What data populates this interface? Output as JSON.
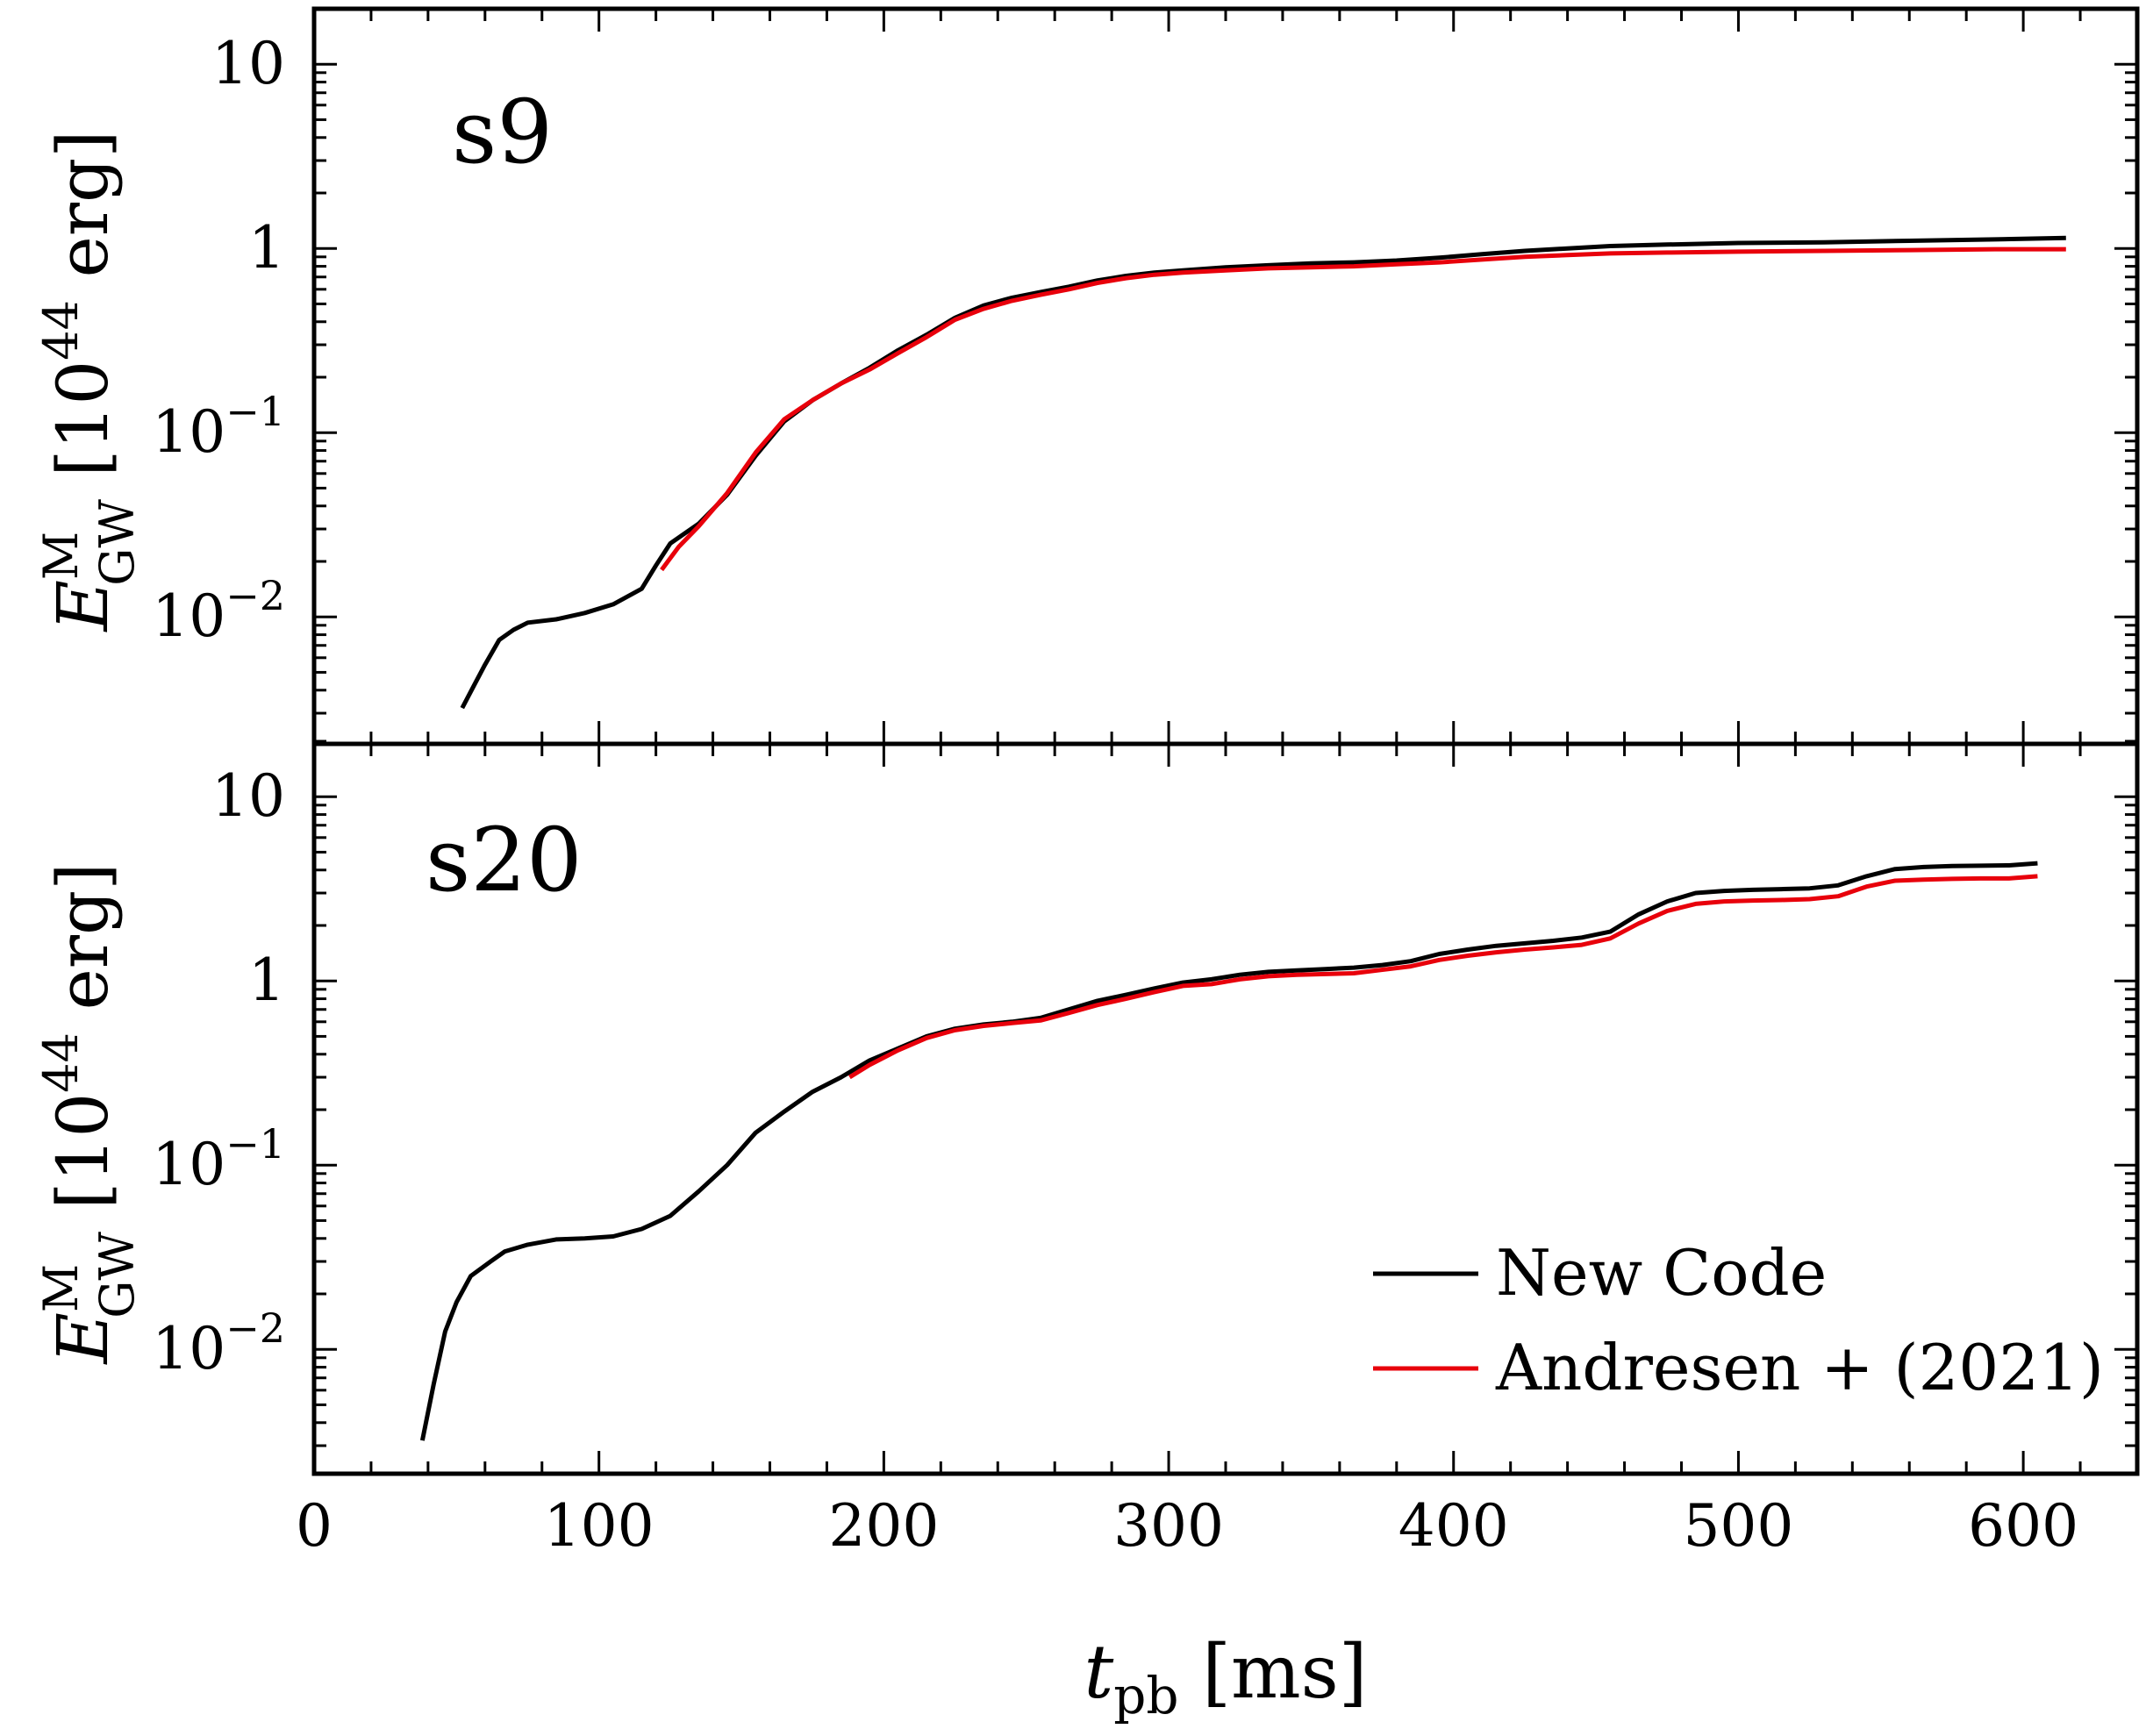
{
  "chart_data": [
    {
      "type": "line",
      "panel_label": "s9",
      "yscale": "log",
      "xlim": [
        0,
        640
      ],
      "ylim": [
        0.003,
        20
      ],
      "xticks": [
        "0",
        "100",
        "200",
        "300",
        "400",
        "500",
        "600"
      ],
      "yticks": [
        {
          "base": "10",
          "exp": "−2",
          "value": 0.01
        },
        {
          "base": "10",
          "exp": "−1",
          "value": 0.1
        },
        {
          "base": "1",
          "exp": "",
          "value": 1
        },
        {
          "base": "10",
          "exp": "",
          "value": 10
        }
      ],
      "ylabel": {
        "sym": "E",
        "sup": "M",
        "sub": "GW",
        "unit_open": " [10",
        "unit_exp": "44",
        "unit_close": " erg]"
      },
      "series": [
        {
          "name": "New Code",
          "color": "#000000",
          "points": [
            [
              52,
              0.0032
            ],
            [
              56,
              0.0042
            ],
            [
              60,
              0.0055
            ],
            [
              65,
              0.0075
            ],
            [
              70,
              0.0085
            ],
            [
              75,
              0.0093
            ],
            [
              85,
              0.0097
            ],
            [
              95,
              0.0105
            ],
            [
              105,
              0.0117
            ],
            [
              115,
              0.0142
            ],
            [
              120,
              0.019
            ],
            [
              125,
              0.025
            ],
            [
              135,
              0.032
            ],
            [
              145,
              0.046
            ],
            [
              155,
              0.075
            ],
            [
              165,
              0.115
            ],
            [
              175,
              0.15
            ],
            [
              185,
              0.185
            ],
            [
              195,
              0.225
            ],
            [
              205,
              0.28
            ],
            [
              215,
              0.34
            ],
            [
              225,
              0.42
            ],
            [
              235,
              0.49
            ],
            [
              245,
              0.54
            ],
            [
              255,
              0.58
            ],
            [
              265,
              0.62
            ],
            [
              275,
              0.67
            ],
            [
              285,
              0.71
            ],
            [
              295,
              0.74
            ],
            [
              305,
              0.76
            ],
            [
              320,
              0.79
            ],
            [
              335,
              0.81
            ],
            [
              350,
              0.83
            ],
            [
              365,
              0.84
            ],
            [
              380,
              0.86
            ],
            [
              395,
              0.89
            ],
            [
              410,
              0.93
            ],
            [
              425,
              0.97
            ],
            [
              440,
              1.0
            ],
            [
              455,
              1.03
            ],
            [
              475,
              1.05
            ],
            [
              500,
              1.07
            ],
            [
              530,
              1.08
            ],
            [
              560,
              1.1
            ],
            [
              590,
              1.12
            ],
            [
              615,
              1.14
            ]
          ]
        },
        {
          "name": "Andresen + (2021)",
          "color": "#e8000b",
          "points": [
            [
              122,
              0.018
            ],
            [
              128,
              0.024
            ],
            [
              135,
              0.031
            ],
            [
              145,
              0.047
            ],
            [
              155,
              0.078
            ],
            [
              165,
              0.118
            ],
            [
              175,
              0.15
            ],
            [
              185,
              0.185
            ],
            [
              195,
              0.22
            ],
            [
              205,
              0.27
            ],
            [
              215,
              0.33
            ],
            [
              225,
              0.41
            ],
            [
              235,
              0.47
            ],
            [
              245,
              0.52
            ],
            [
              255,
              0.56
            ],
            [
              265,
              0.6
            ],
            [
              275,
              0.65
            ],
            [
              285,
              0.69
            ],
            [
              295,
              0.72
            ],
            [
              305,
              0.74
            ],
            [
              320,
              0.76
            ],
            [
              335,
              0.78
            ],
            [
              350,
              0.79
            ],
            [
              365,
              0.8
            ],
            [
              380,
              0.82
            ],
            [
              395,
              0.84
            ],
            [
              410,
              0.87
            ],
            [
              425,
              0.9
            ],
            [
              440,
              0.92
            ],
            [
              455,
              0.94
            ],
            [
              475,
              0.95
            ],
            [
              500,
              0.96
            ],
            [
              530,
              0.97
            ],
            [
              560,
              0.98
            ],
            [
              590,
              0.99
            ],
            [
              615,
              0.99
            ]
          ]
        }
      ]
    },
    {
      "type": "line",
      "panel_label": "s20",
      "yscale": "log",
      "xlim": [
        0,
        640
      ],
      "ylim": [
        0.003,
        20
      ],
      "xticks": [
        "0",
        "100",
        "200",
        "300",
        "400",
        "500",
        "600"
      ],
      "yticks": [
        {
          "base": "10",
          "exp": "−2",
          "value": 0.01
        },
        {
          "base": "10",
          "exp": "−1",
          "value": 0.1
        },
        {
          "base": "1",
          "exp": "",
          "value": 1
        },
        {
          "base": "10",
          "exp": "",
          "value": 10
        }
      ],
      "ylabel": {
        "sym": "E",
        "sup": "M",
        "sub": "GW",
        "unit_open": " [10",
        "unit_exp": "44",
        "unit_close": " erg]"
      },
      "xlabel": {
        "sym": "t",
        "sub": "pb",
        "unit": " [ms]"
      },
      "legend": {
        "placement": "bottom-right"
      },
      "series": [
        {
          "name": "New Code",
          "color": "#000000",
          "points": [
            [
              38,
              0.0032
            ],
            [
              42,
              0.0065
            ],
            [
              46,
              0.0125
            ],
            [
              50,
              0.018
            ],
            [
              55,
              0.025
            ],
            [
              62,
              0.03
            ],
            [
              67,
              0.034
            ],
            [
              75,
              0.037
            ],
            [
              85,
              0.0395
            ],
            [
              95,
              0.04
            ],
            [
              105,
              0.041
            ],
            [
              115,
              0.045
            ],
            [
              125,
              0.053
            ],
            [
              135,
              0.072
            ],
            [
              145,
              0.1
            ],
            [
              155,
              0.15
            ],
            [
              165,
              0.195
            ],
            [
              175,
              0.25
            ],
            [
              185,
              0.3
            ],
            [
              195,
              0.37
            ],
            [
              205,
              0.43
            ],
            [
              215,
              0.5
            ],
            [
              225,
              0.55
            ],
            [
              235,
              0.58
            ],
            [
              245,
              0.6
            ],
            [
              255,
              0.63
            ],
            [
              265,
              0.7
            ],
            [
              275,
              0.78
            ],
            [
              285,
              0.84
            ],
            [
              295,
              0.91
            ],
            [
              305,
              0.98
            ],
            [
              315,
              1.02
            ],
            [
              325,
              1.08
            ],
            [
              335,
              1.12
            ],
            [
              345,
              1.14
            ],
            [
              355,
              1.16
            ],
            [
              365,
              1.18
            ],
            [
              375,
              1.22
            ],
            [
              385,
              1.28
            ],
            [
              395,
              1.4
            ],
            [
              405,
              1.48
            ],
            [
              415,
              1.55
            ],
            [
              425,
              1.6
            ],
            [
              435,
              1.65
            ],
            [
              445,
              1.72
            ],
            [
              455,
              1.85
            ],
            [
              465,
              2.3
            ],
            [
              475,
              2.7
            ],
            [
              485,
              3.0
            ],
            [
              495,
              3.08
            ],
            [
              505,
              3.12
            ],
            [
              515,
              3.15
            ],
            [
              525,
              3.18
            ],
            [
              535,
              3.3
            ],
            [
              545,
              3.7
            ],
            [
              555,
              4.05
            ],
            [
              565,
              4.15
            ],
            [
              575,
              4.2
            ],
            [
              585,
              4.22
            ],
            [
              595,
              4.24
            ],
            [
              605,
              4.35
            ]
          ]
        },
        {
          "name": "Andresen + (2021)",
          "color": "#e8000b",
          "points": [
            [
              188,
              0.3
            ],
            [
              195,
              0.35
            ],
            [
              205,
              0.42
            ],
            [
              215,
              0.49
            ],
            [
              225,
              0.54
            ],
            [
              235,
              0.57
            ],
            [
              245,
              0.59
            ],
            [
              255,
              0.61
            ],
            [
              265,
              0.67
            ],
            [
              275,
              0.74
            ],
            [
              285,
              0.8
            ],
            [
              295,
              0.87
            ],
            [
              305,
              0.94
            ],
            [
              315,
              0.96
            ],
            [
              325,
              1.02
            ],
            [
              335,
              1.06
            ],
            [
              345,
              1.08
            ],
            [
              355,
              1.09
            ],
            [
              365,
              1.1
            ],
            [
              375,
              1.15
            ],
            [
              385,
              1.2
            ],
            [
              395,
              1.3
            ],
            [
              405,
              1.37
            ],
            [
              415,
              1.43
            ],
            [
              425,
              1.48
            ],
            [
              435,
              1.52
            ],
            [
              445,
              1.57
            ],
            [
              455,
              1.7
            ],
            [
              465,
              2.05
            ],
            [
              475,
              2.4
            ],
            [
              485,
              2.62
            ],
            [
              495,
              2.7
            ],
            [
              505,
              2.73
            ],
            [
              515,
              2.75
            ],
            [
              525,
              2.78
            ],
            [
              535,
              2.88
            ],
            [
              545,
              3.25
            ],
            [
              555,
              3.5
            ],
            [
              565,
              3.55
            ],
            [
              575,
              3.58
            ],
            [
              585,
              3.6
            ],
            [
              595,
              3.6
            ],
            [
              605,
              3.7
            ]
          ]
        }
      ]
    }
  ]
}
